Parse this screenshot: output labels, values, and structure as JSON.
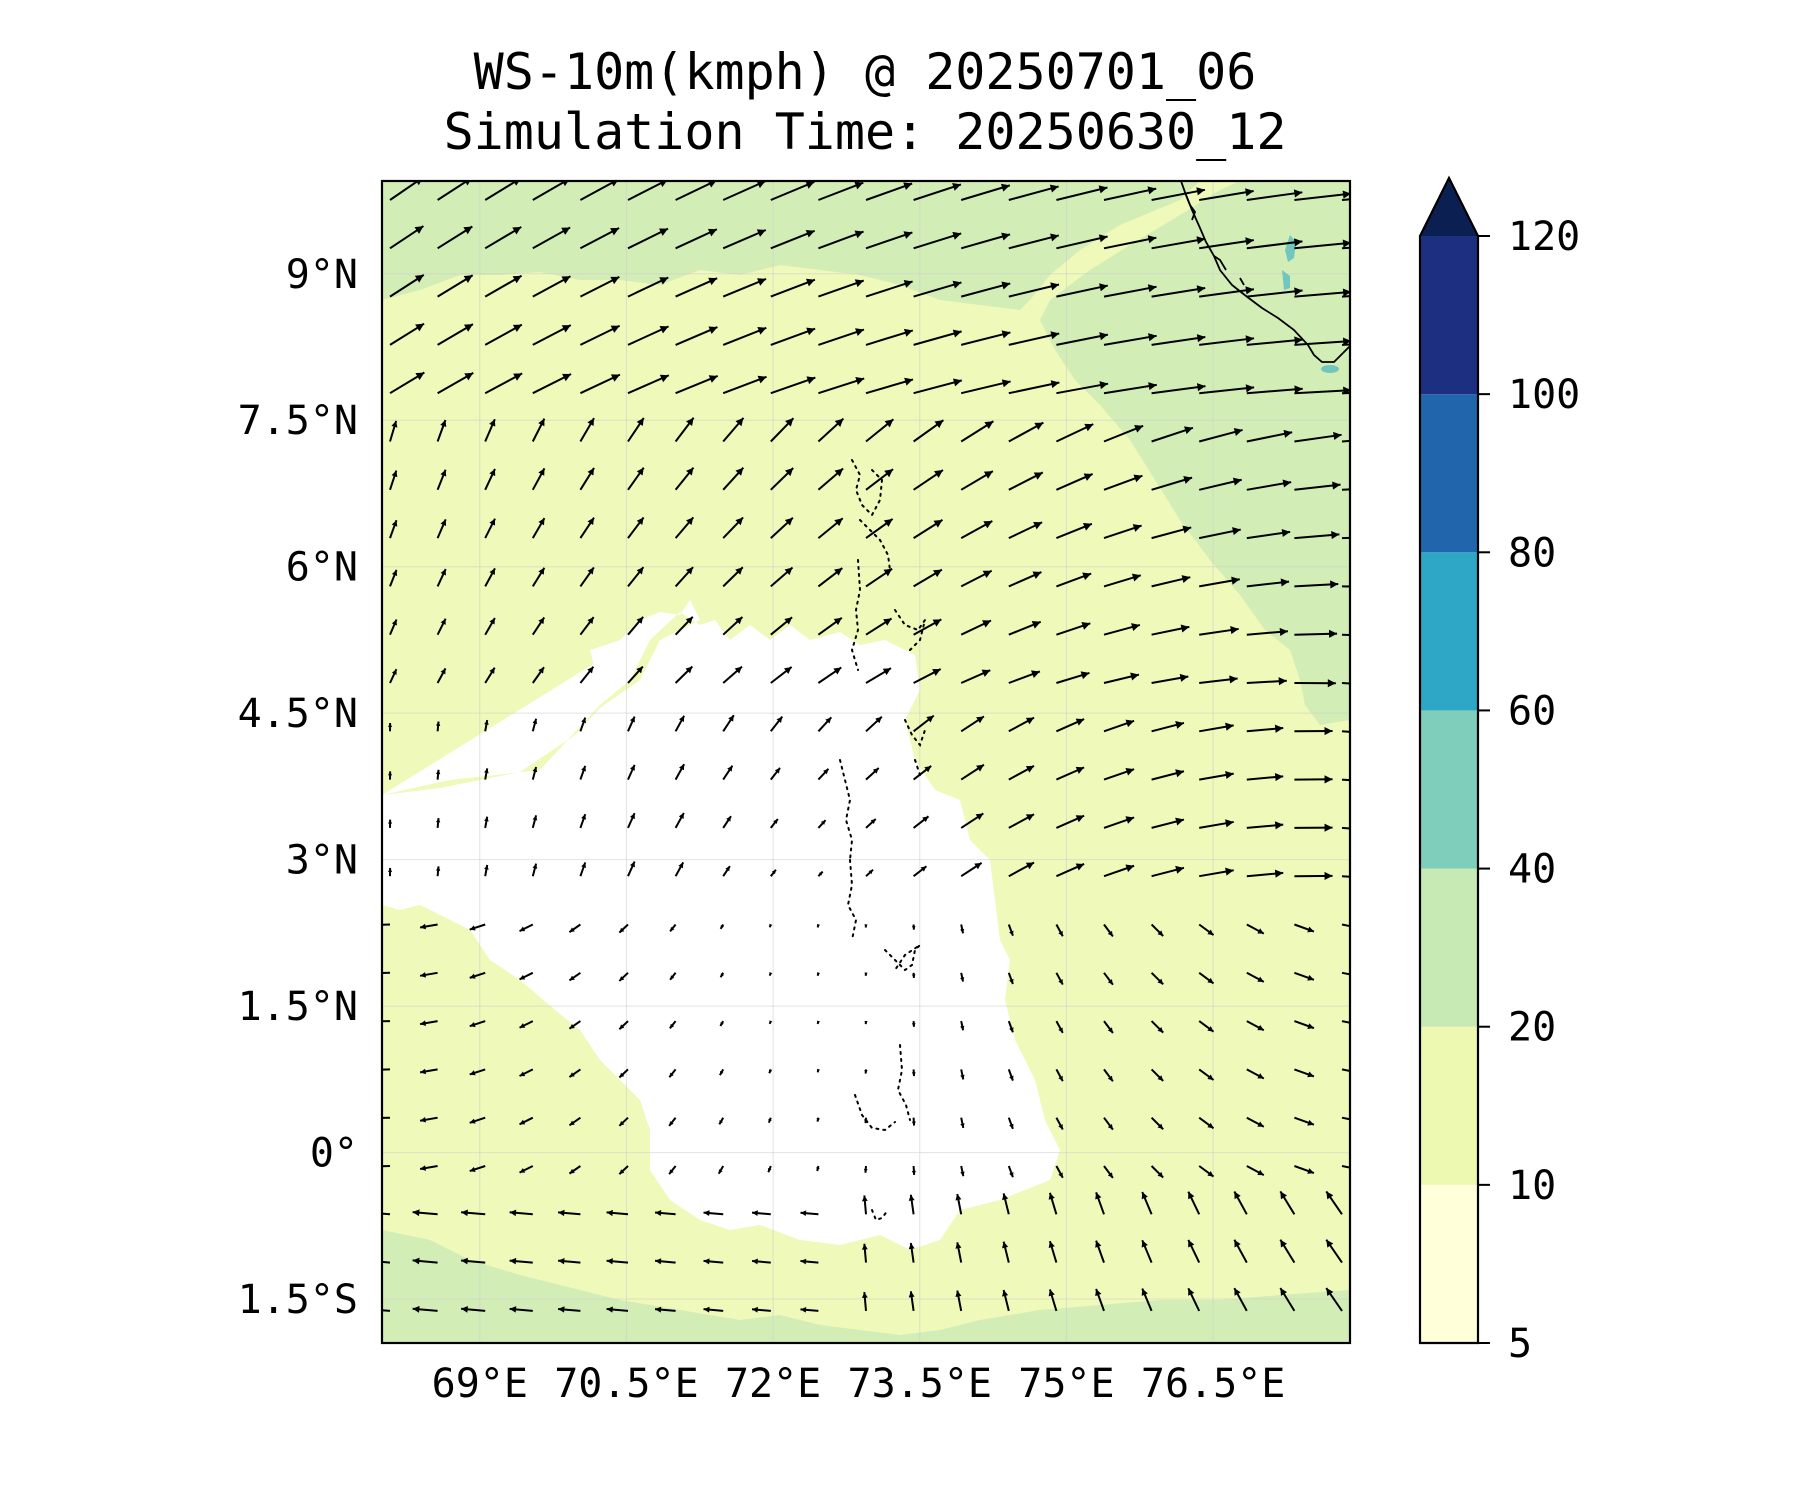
{
  "map": {
    "title_line1": "WS-10m(kmph) @ 20250701_06",
    "title_line2": "Simulation Time: 20250630_12",
    "lat_labels": [
      "9°N",
      "7.5°N",
      "6°N",
      "4.5°N",
      "3°N",
      "1.5°N",
      "0°",
      "1.5°S"
    ],
    "lon_labels": [
      "69°E",
      "70.5°E",
      "72°E",
      "73.5°E",
      "75°E",
      "76.5°E"
    ],
    "extent": {
      "lon_min": 68.0,
      "lon_max": 77.9,
      "lat_min": -1.95,
      "lat_max": 9.95
    },
    "grid": true,
    "coastline": "India south-west coast (top-right) and Maldives atolls (centre)"
  },
  "colorbar": {
    "tick_labels": [
      "5",
      "10",
      "20",
      "40",
      "60",
      "80",
      "100",
      "120"
    ],
    "bounds": [
      5,
      10,
      20,
      40,
      60,
      80,
      100,
      120
    ],
    "colors": [
      "#ffffd9",
      "#edf8b1",
      "#c7e9b4",
      "#7fcdbb",
      "#2ea7c6",
      "#2166ac",
      "#1d2f80"
    ],
    "extend_color": "#0b1f52",
    "extend": "max"
  },
  "colors": {
    "zone_lt5": "#ffffff",
    "zone_5_10": "#fcfed6",
    "zone_10_20": "#eff9b9",
    "zone_20_40": "#d3edb7",
    "lake": "#73c6be"
  }
}
